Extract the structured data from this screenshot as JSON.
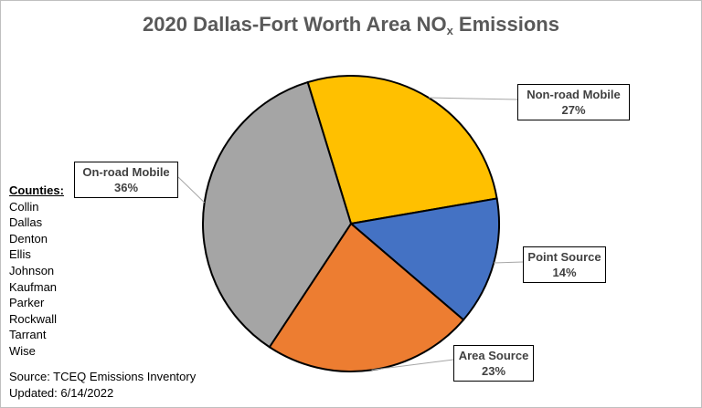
{
  "chart_data": {
    "type": "pie",
    "title_main": "2020 Dallas-Fort Worth Area NO",
    "title_sub": "x",
    "title_end": " Emissions",
    "slices": [
      {
        "name": "Non-road Mobile",
        "value": 27,
        "pct_label": "27%",
        "color": "#FFC000"
      },
      {
        "name": "Point Source",
        "value": 14,
        "pct_label": "14%",
        "color": "#4472C4"
      },
      {
        "name": "Area Source",
        "value": 23,
        "pct_label": "23%",
        "color": "#ED7D31"
      },
      {
        "name": "On-road Mobile",
        "value": 36,
        "pct_label": "36%",
        "color": "#A5A5A5"
      }
    ]
  },
  "counties": {
    "header": "Counties:",
    "list": [
      "Collin",
      "Dallas",
      "Denton",
      "Ellis",
      "Johnson",
      "Kaufman",
      "Parker",
      "Rockwall",
      "Tarrant",
      "Wise"
    ]
  },
  "source": {
    "line1": "Source: TCEQ Emissions Inventory",
    "line2": "Updated: 6/14/2022"
  }
}
